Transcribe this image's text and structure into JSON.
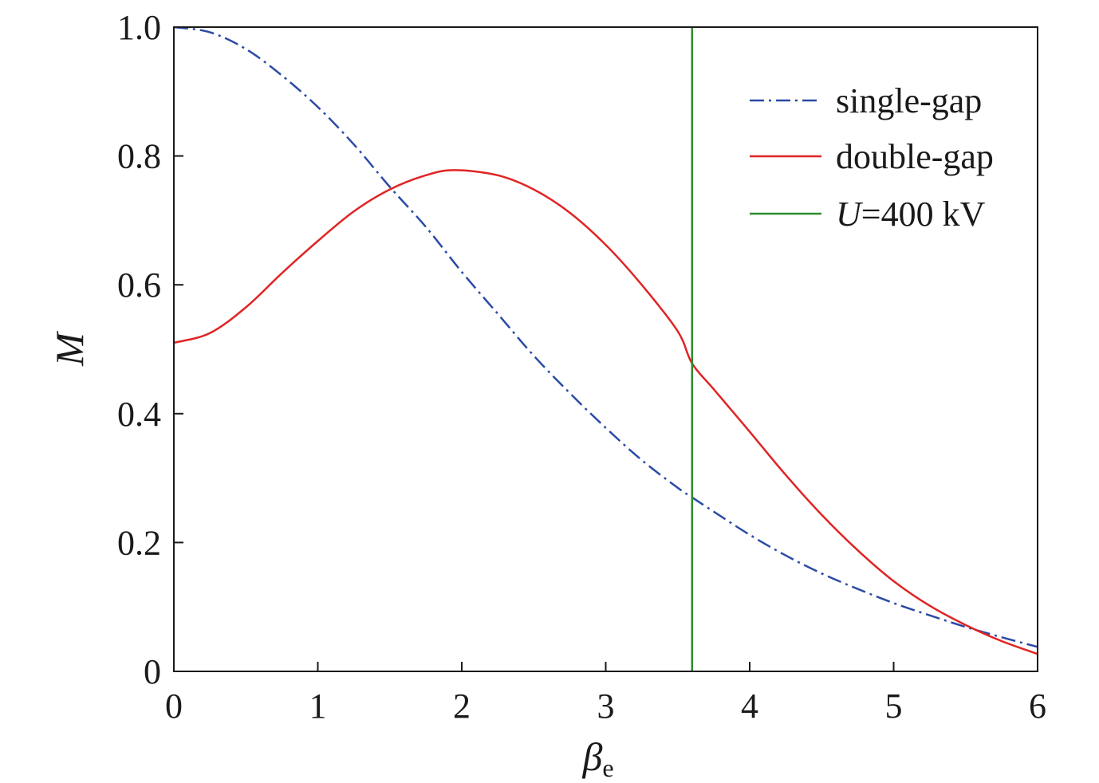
{
  "chart_data": {
    "type": "line",
    "xlabel": "β",
    "xlabel_subscript": "e",
    "ylabel": "M",
    "xlim": [
      0,
      6
    ],
    "ylim": [
      0,
      1.0
    ],
    "x_ticks": [
      0,
      1,
      2,
      3,
      4,
      5,
      6
    ],
    "x_tick_labels": [
      "0",
      "1",
      "2",
      "3",
      "4",
      "5",
      "6"
    ],
    "y_ticks": [
      0,
      0.2,
      0.4,
      0.6,
      0.8,
      1.0
    ],
    "y_tick_labels": [
      "0",
      "0.2",
      "0.4",
      "0.6",
      "0.8",
      "1.0"
    ],
    "grid": false,
    "legend_position": "top-right",
    "series": [
      {
        "name": "single-gap",
        "color": "#2b4aa6",
        "style": "dashdot",
        "x": [
          0,
          0.25,
          0.5,
          0.75,
          1.0,
          1.25,
          1.5,
          1.75,
          2.0,
          2.25,
          2.5,
          2.75,
          3.0,
          3.25,
          3.5,
          3.6,
          3.75,
          4.0,
          4.25,
          4.5,
          4.75,
          5.0,
          5.25,
          5.5,
          5.75,
          6.0
        ],
        "y": [
          1.0,
          0.992,
          0.966,
          0.925,
          0.876,
          0.818,
          0.752,
          0.69,
          0.62,
          0.555,
          0.49,
          0.432,
          0.378,
          0.328,
          0.285,
          0.27,
          0.248,
          0.212,
          0.18,
          0.152,
          0.128,
          0.106,
          0.087,
          0.069,
          0.053,
          0.038
        ]
      },
      {
        "name": "double-gap",
        "color": "#e02424",
        "style": "solid",
        "x": [
          0,
          0.25,
          0.5,
          0.75,
          1.0,
          1.25,
          1.5,
          1.75,
          1.95,
          2.25,
          2.5,
          2.75,
          3.0,
          3.25,
          3.5,
          3.6,
          3.75,
          4.0,
          4.25,
          4.5,
          4.75,
          5.0,
          5.25,
          5.5,
          5.75,
          6.0
        ],
        "y": [
          0.51,
          0.525,
          0.565,
          0.618,
          0.668,
          0.714,
          0.748,
          0.77,
          0.778,
          0.77,
          0.748,
          0.712,
          0.662,
          0.6,
          0.528,
          0.478,
          0.438,
          0.372,
          0.305,
          0.243,
          0.188,
          0.14,
          0.102,
          0.072,
          0.047,
          0.027
        ]
      },
      {
        "name": "U=400 kV",
        "name_italic_part": "U",
        "name_rest": "=400 kV",
        "color": "#2e8b2e",
        "style": "vertical",
        "x": [
          3.6,
          3.6
        ],
        "y": [
          0,
          1.0
        ]
      }
    ]
  }
}
